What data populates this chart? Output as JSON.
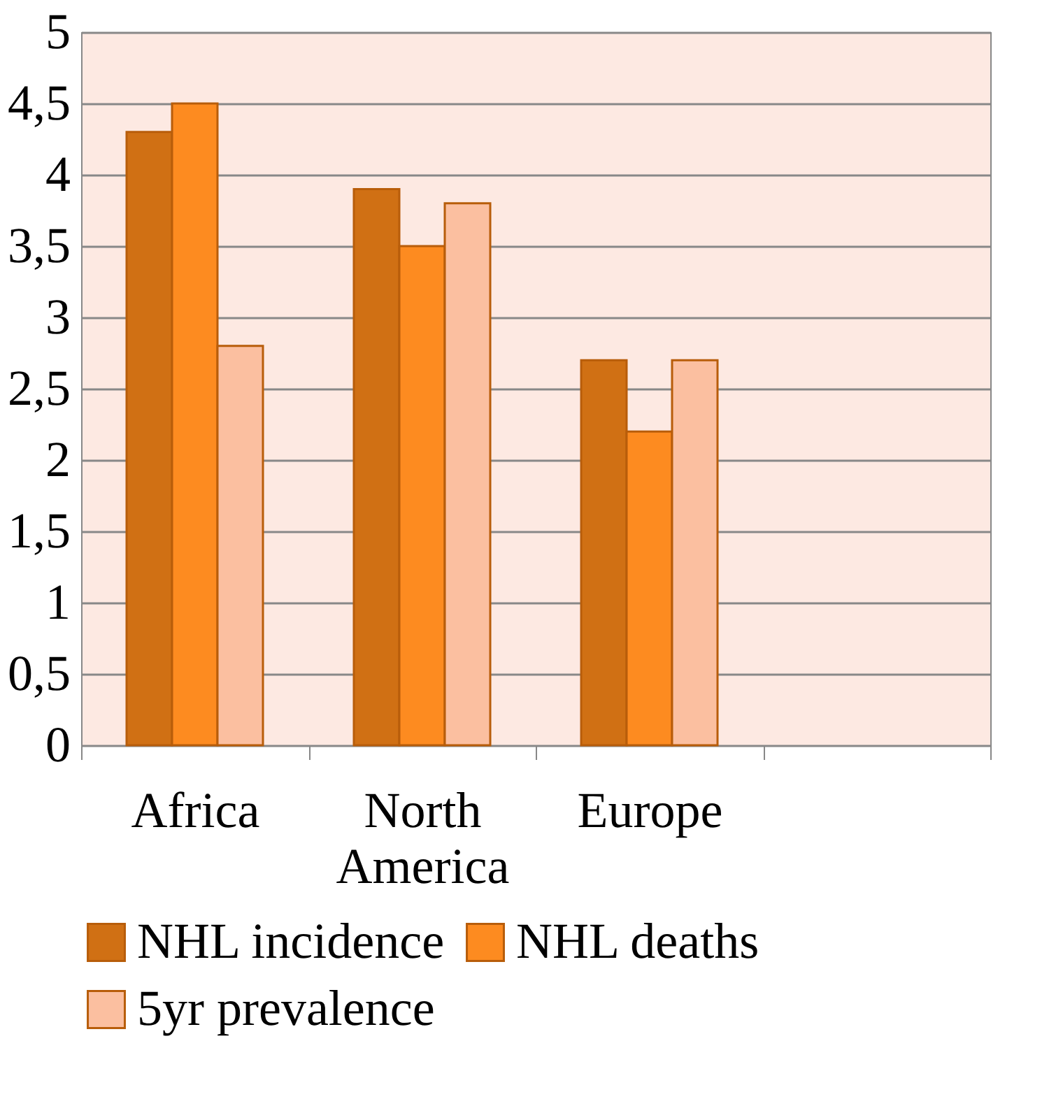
{
  "chart_data": {
    "type": "bar",
    "categories": [
      "Africa",
      "North America",
      "Europe",
      null
    ],
    "series": [
      {
        "name": "NHL incidence",
        "color": "#d07014",
        "values": [
          4.3,
          3.9,
          2.7,
          null
        ]
      },
      {
        "name": "NHL deaths",
        "color": "#fd8b20",
        "values": [
          4.5,
          3.5,
          2.2,
          null
        ]
      },
      {
        "name": "5yr prevalence",
        "color": "#fbbfa0",
        "values": [
          2.8,
          3.8,
          2.7,
          null
        ]
      }
    ],
    "ylim": [
      0,
      5
    ],
    "yticks": [
      0,
      {
        "value": 0.5,
        "label": "0,5"
      },
      1,
      {
        "value": 1.5,
        "label": "1,5"
      },
      2,
      {
        "value": 2.5,
        "label": "2,5"
      },
      3,
      {
        "value": 3.5,
        "label": "3,5"
      },
      4,
      {
        "value": 4.5,
        "label": "4,5"
      },
      5
    ],
    "grid": "y",
    "legend": "bottom"
  }
}
